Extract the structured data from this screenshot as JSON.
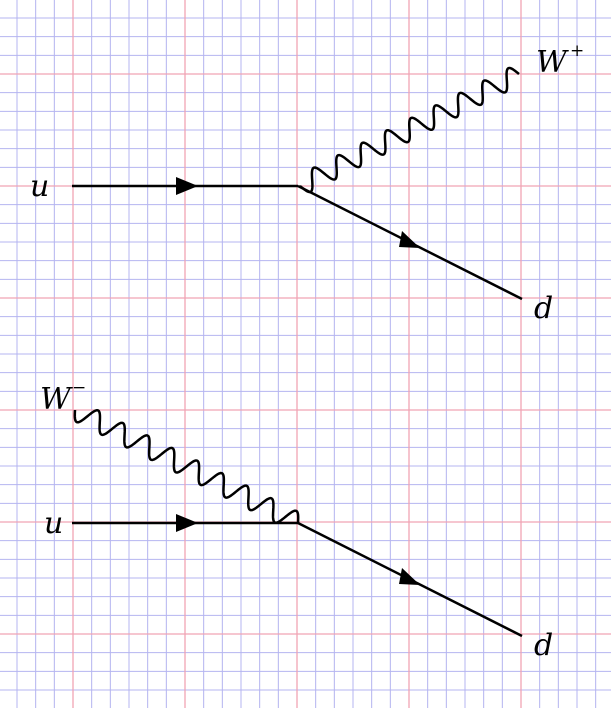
{
  "grid": {
    "minor_color": "#b4b4f0",
    "major_color": "#f0a4b4"
  },
  "colors": {
    "line": "#000000",
    "background": "#ffffff"
  },
  "diagrams": [
    {
      "incoming_label": "u",
      "boson_symbol": "W",
      "boson_charge": "+",
      "outgoing_label": "d"
    },
    {
      "incoming_label": "u",
      "boson_symbol": "W",
      "boson_charge": "−",
      "outgoing_label": "d"
    }
  ]
}
